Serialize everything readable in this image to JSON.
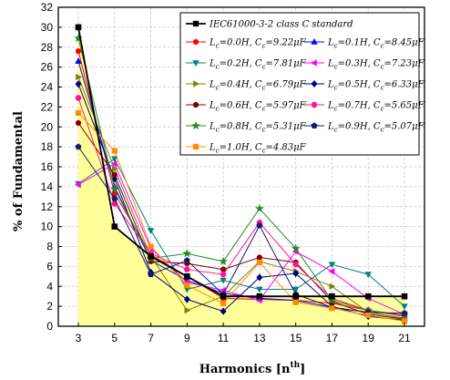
{
  "chart_data": {
    "type": "line",
    "xlabel": "Harmonics [n",
    "xlabel_sup": "th",
    "xlabel_end": "]",
    "ylabel": "% of Fundamental",
    "x": [
      3,
      5,
      7,
      9,
      11,
      13,
      15,
      17,
      19,
      21
    ],
    "x_ticks": [
      "3",
      "5",
      "7",
      "9",
      "11",
      "13",
      "15",
      "17",
      "19",
      "21"
    ],
    "y_ticks": [
      "0",
      "2",
      "4",
      "6",
      "8",
      "10",
      "12",
      "14",
      "16",
      "18",
      "20",
      "22",
      "24",
      "26",
      "28",
      "30",
      "32"
    ],
    "ylim": [
      0,
      32
    ],
    "grid": true,
    "legend_position": "top-right",
    "standard": {
      "name": "IEC61000-3-2 class C standard",
      "color": "#000000",
      "fill": "#ffff99",
      "marker": "square",
      "values": [
        30,
        10,
        7,
        5,
        3,
        3,
        3,
        3,
        3,
        3
      ]
    },
    "series": [
      {
        "name": "L_c=0.0H, C_c=9.22μF",
        "L": "0.0H",
        "C": "9.22μF",
        "color": "#ff0000",
        "marker": "circle",
        "values": [
          27.6,
          13.3,
          7.2,
          5.0,
          2.8,
          2.7,
          2.6,
          2.3,
          1.6,
          1.0
        ]
      },
      {
        "name": "L_c=0.1H, C_c=8.45μF",
        "L": "0.1H",
        "C": "8.45μF",
        "color": "#0000ff",
        "marker": "triangle-up",
        "values": [
          26.6,
          14.0,
          6.6,
          4.6,
          3.3,
          2.8,
          2.6,
          1.9,
          1.4,
          0.8
        ]
      },
      {
        "name": "L_c=0.2H, C_c=7.81μF",
        "L": "0.2H",
        "C": "7.81μF",
        "color": "#008080",
        "marker": "triangle-down",
        "values": [
          14.3,
          16.8,
          9.6,
          3.7,
          4.6,
          3.7,
          3.7,
          6.2,
          5.2,
          2.0
        ]
      },
      {
        "name": "L_c=0.3H, C_c=7.23μF",
        "L": "0.3H",
        "C": "7.23μF",
        "color": "#ff00ff",
        "marker": "triangle-left",
        "values": [
          14.2,
          16.3,
          7.8,
          4.4,
          3.6,
          2.6,
          7.5,
          5.5,
          2.8,
          1.2
        ]
      },
      {
        "name": "L_c=0.4H, C_c=6.79μF",
        "L": "0.4H",
        "C": "6.79μF",
        "color": "#808000",
        "marker": "triangle-right",
        "values": [
          25.0,
          15.8,
          7.0,
          1.6,
          3.0,
          6.5,
          5.5,
          4.0,
          1.4,
          0.8
        ]
      },
      {
        "name": "L_c=0.5H, C_c=6.33μF",
        "L": "0.5H",
        "C": "6.33μF",
        "color": "#000080",
        "marker": "diamond",
        "values": [
          24.3,
          14.8,
          5.4,
          2.7,
          1.5,
          4.9,
          5.3,
          2.0,
          1.0,
          0.6
        ]
      },
      {
        "name": "L_c=0.6H, C_c=5.97μF",
        "L": "0.6H",
        "C": "5.97μF",
        "color": "#800000",
        "marker": "circle",
        "values": [
          20.4,
          15.2,
          6.5,
          6.3,
          5.7,
          6.9,
          6.4,
          2.5,
          1.2,
          0.7
        ]
      },
      {
        "name": "L_c=0.7H, C_c=5.65μF",
        "L": "0.7H",
        "C": "5.65μF",
        "color": "#ff1493",
        "marker": "hexagon",
        "values": [
          22.9,
          12.3,
          7.3,
          5.7,
          5.2,
          10.4,
          6.2,
          2.8,
          1.6,
          1.0
        ]
      },
      {
        "name": "L_c=0.8H, C_c=5.31μF",
        "L": "0.8H",
        "C": "5.31μF",
        "color": "#228b22",
        "marker": "star",
        "values": [
          28.9,
          13.8,
          6.8,
          7.3,
          6.5,
          11.8,
          7.8,
          2.6,
          1.6,
          1.1
        ]
      },
      {
        "name": "L_c=0.9H, C_c=5.07μF",
        "L": "0.9H",
        "C": "5.07μF",
        "color": "#191970",
        "marker": "pentagon",
        "values": [
          18.0,
          12.8,
          5.2,
          6.6,
          3.2,
          10.1,
          3.2,
          1.9,
          1.4,
          1.3
        ]
      },
      {
        "name": "L_c=1.0H, C_c=4.83μF",
        "L": "1.0H",
        "C": "4.83μF",
        "color": "#ff8c00",
        "marker": "square",
        "values": [
          21.4,
          17.6,
          8.0,
          4.1,
          2.3,
          6.4,
          2.4,
          1.8,
          1.1,
          0.5
        ]
      }
    ]
  }
}
